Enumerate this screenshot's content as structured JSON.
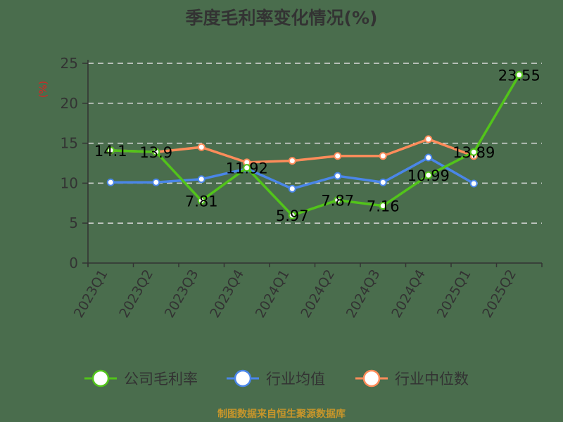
{
  "title": "季度毛利率变化情况(%)",
  "footer": "制图数据来自恒生聚源数据库",
  "colors": {
    "company": "#52c41a",
    "industry_avg": "#4a86e8",
    "industry_median": "#ff8c5a",
    "axis_label_unit": "#e02020",
    "footer": "#c8962a"
  },
  "legend": [
    {
      "label": "公司毛利率",
      "color": "#52c41a"
    },
    {
      "label": "行业均值",
      "color": "#4a86e8"
    },
    {
      "label": "行业中位数",
      "color": "#ff8c5a"
    }
  ],
  "chart_data": {
    "type": "line",
    "title": "季度毛利率变化情况(%)",
    "xlabel": "",
    "ylabel": "(%)",
    "ylim": [
      0,
      25
    ],
    "yticks": [
      0,
      5,
      10,
      15,
      20,
      25
    ],
    "grid": true,
    "legend_position": "bottom",
    "categories": [
      "2023Q1",
      "2023Q2",
      "2023Q3",
      "2023Q4",
      "2024Q1",
      "2024Q2",
      "2024Q3",
      "2024Q4",
      "2025Q1",
      "2025Q2"
    ],
    "series": [
      {
        "name": "公司毛利率",
        "values": [
          14.1,
          13.9,
          7.81,
          11.92,
          5.97,
          7.87,
          7.16,
          10.99,
          13.89,
          23.55
        ],
        "labeled": true
      },
      {
        "name": "行业均值",
        "values": [
          10.1,
          10.1,
          10.5,
          11.8,
          9.3,
          10.9,
          10.1,
          13.2,
          9.95,
          null
        ]
      },
      {
        "name": "行业中位数",
        "values": [
          14.1,
          13.9,
          14.5,
          12.6,
          12.8,
          13.4,
          13.4,
          15.5,
          13.4,
          null
        ]
      }
    ]
  }
}
